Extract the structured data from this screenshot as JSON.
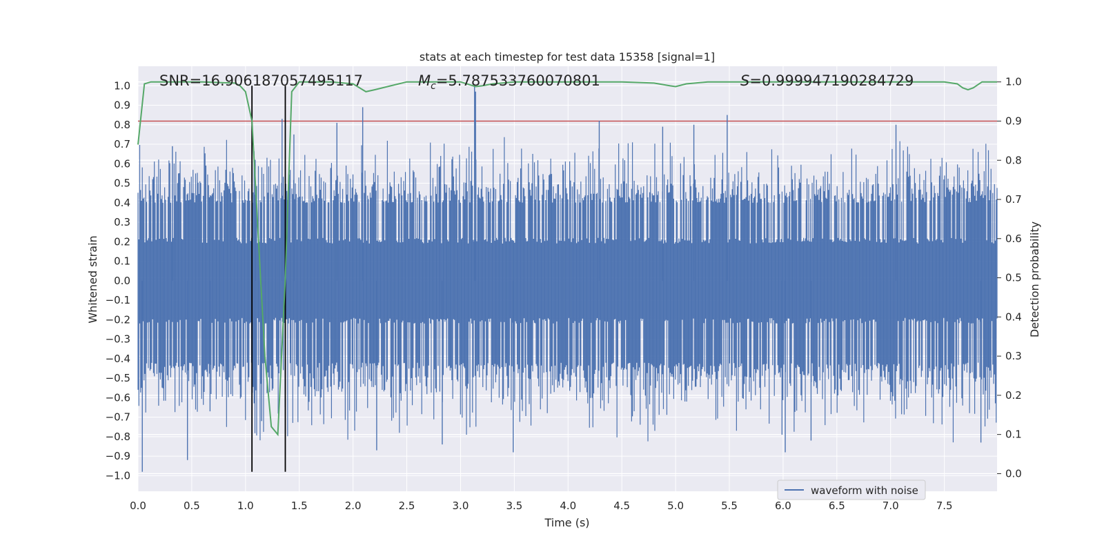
{
  "chart_data": {
    "type": "line",
    "title": "stats at each timestep for test data 15358 [signal=1]",
    "xlabel": "Time (s)",
    "ylabel": "Whitened strain",
    "y2label": "Detection probability",
    "xlim": [
      0.0,
      7.99
    ],
    "ylim": [
      -1.08,
      1.1
    ],
    "y2lim": [
      -0.045,
      1.04
    ],
    "x_ticks": [
      0.0,
      0.5,
      1.0,
      1.5,
      2.0,
      2.5,
      3.0,
      3.5,
      4.0,
      4.5,
      5.0,
      5.5,
      6.0,
      6.5,
      7.0,
      7.5
    ],
    "x_tick_labels": [
      "0.0",
      "0.5",
      "1.0",
      "1.5",
      "2.0",
      "2.5",
      "3.0",
      "3.5",
      "4.0",
      "4.5",
      "5.0",
      "5.5",
      "6.0",
      "6.5",
      "7.0",
      "7.5"
    ],
    "y_ticks": [
      -1.0,
      -0.9,
      -0.8,
      -0.7,
      -0.6,
      -0.5,
      -0.4,
      -0.3,
      -0.2,
      -0.1,
      0.0,
      0.1,
      0.2,
      0.3,
      0.4,
      0.5,
      0.6,
      0.7,
      0.8,
      0.9,
      1.0
    ],
    "y_tick_labels": [
      "−1.0",
      "−0.9",
      "−0.8",
      "−0.7",
      "−0.6",
      "−0.5",
      "−0.4",
      "−0.3",
      "−0.2",
      "−0.1",
      "0.0",
      "0.1",
      "0.2",
      "0.3",
      "0.4",
      "0.5",
      "0.6",
      "0.7",
      "0.8",
      "0.9",
      "1.0"
    ],
    "y2_ticks": [
      0.0,
      0.1,
      0.2,
      0.3,
      0.4,
      0.5,
      0.6,
      0.7,
      0.8,
      0.9,
      1.0
    ],
    "y2_tick_labels": [
      "0.0",
      "0.1",
      "0.2",
      "0.3",
      "0.4",
      "0.5",
      "0.6",
      "0.7",
      "0.8",
      "0.9",
      "1.0"
    ],
    "annotations": {
      "snr": "SNR=16.906187057495117",
      "mc_symbol": "M",
      "mc_sub": "c",
      "mc_value": "=5.787533760070801",
      "s_symbol": "S",
      "s_value": "=0.999947190284729"
    },
    "legend": {
      "label": "waveform with noise",
      "location": "lower right"
    },
    "vertical_lines": {
      "x": [
        1.06,
        1.37
      ],
      "from_y": -0.98,
      "to_y": 1.0,
      "color": "#000000"
    },
    "threshold": {
      "value": 0.9,
      "axis": "right",
      "color": "#c44e52"
    },
    "waveform": {
      "name": "waveform with noise",
      "color": "#4c72b0",
      "t_start": 0.0,
      "t_end": 7.99,
      "n_samples": 1000,
      "core_amplitude": 0.19,
      "typical_max": [
        0.4,
        0.62
      ],
      "typical_min": [
        -0.42,
        -0.68
      ],
      "spikes": [
        {
          "t": 0.04,
          "v": -0.98
        },
        {
          "t": 0.32,
          "v": 0.69
        },
        {
          "t": 0.46,
          "v": -0.92
        },
        {
          "t": 0.67,
          "v": -0.67
        },
        {
          "t": 1.09,
          "v": 0.62
        },
        {
          "t": 1.15,
          "v": -0.72
        },
        {
          "t": 1.34,
          "v": 0.83
        },
        {
          "t": 1.45,
          "v": 0.75
        },
        {
          "t": 1.85,
          "v": 0.81
        },
        {
          "t": 2.09,
          "v": 0.89
        },
        {
          "t": 2.22,
          "v": -0.87
        },
        {
          "t": 2.83,
          "v": -0.84
        },
        {
          "t": 3.13,
          "v": 1.0
        },
        {
          "t": 3.14,
          "v": 0.97
        },
        {
          "t": 3.49,
          "v": -0.88
        },
        {
          "t": 4.29,
          "v": 0.82
        },
        {
          "t": 4.88,
          "v": 0.79
        },
        {
          "t": 5.17,
          "v": 0.8
        },
        {
          "t": 5.48,
          "v": 0.85
        },
        {
          "t": 5.99,
          "v": -0.79
        },
        {
          "t": 6.02,
          "v": -0.88
        },
        {
          "t": 6.26,
          "v": -0.82
        },
        {
          "t": 7.05,
          "v": 0.8
        },
        {
          "t": 7.84,
          "v": -0.83
        }
      ]
    },
    "detection_probability": {
      "name": "detection probability",
      "color": "#55a868",
      "x": [
        0.0,
        0.06,
        0.12,
        0.3,
        0.6,
        0.9,
        0.95,
        1.0,
        1.06,
        1.12,
        1.18,
        1.24,
        1.3,
        1.37,
        1.43,
        1.5,
        1.8,
        2.0,
        2.12,
        2.2,
        2.35,
        2.5,
        2.8,
        3.0,
        3.14,
        3.2,
        3.3,
        3.5,
        3.8,
        4.0,
        4.5,
        4.8,
        4.95,
        5.0,
        5.1,
        5.3,
        5.6,
        6.0,
        6.5,
        7.0,
        7.5,
        7.62,
        7.67,
        7.72,
        7.77,
        7.85,
        7.99
      ],
      "y": [
        0.84,
        0.995,
        1.0,
        1.0,
        1.0,
        0.997,
        0.99,
        0.975,
        0.9,
        0.6,
        0.3,
        0.12,
        0.1,
        0.5,
        0.975,
        1.0,
        1.0,
        0.995,
        0.975,
        0.98,
        0.99,
        1.0,
        1.0,
        1.0,
        0.988,
        0.99,
        0.995,
        1.0,
        1.0,
        1.0,
        1.0,
        0.997,
        0.99,
        0.988,
        0.995,
        1.0,
        1.0,
        1.0,
        1.0,
        1.0,
        1.0,
        0.995,
        0.985,
        0.98,
        0.985,
        1.0,
        1.0
      ]
    }
  }
}
